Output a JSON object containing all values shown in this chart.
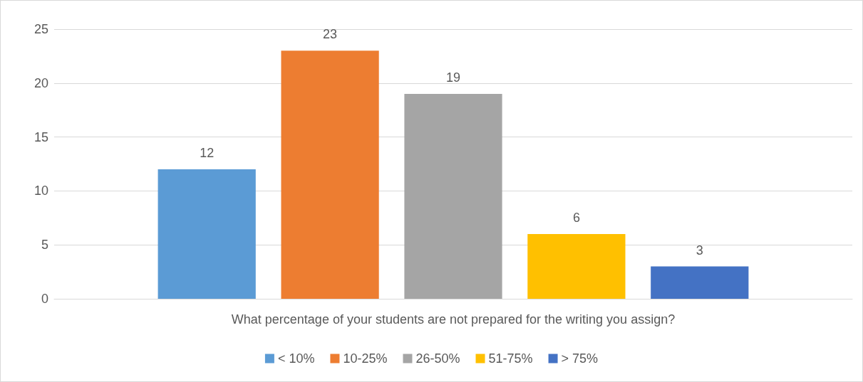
{
  "chart_data": {
    "type": "bar",
    "categories": [
      "What percentage of your students are not prepared for the writing you assign?"
    ],
    "series": [
      {
        "name": "< 10%",
        "color": "#5b9bd5",
        "values": [
          12
        ]
      },
      {
        "name": "10-25%",
        "color": "#ed7d31",
        "values": [
          23
        ]
      },
      {
        "name": "26-50%",
        "color": "#a5a5a5",
        "values": [
          19
        ]
      },
      {
        "name": "51-75%",
        "color": "#ffc000",
        "values": [
          6
        ]
      },
      {
        "name": "> 75%",
        "color": "#4472c4",
        "values": [
          3
        ]
      }
    ],
    "ylim": [
      0,
      25
    ],
    "yticks": [
      0,
      5,
      10,
      15,
      20,
      25
    ],
    "grid": "y",
    "legend": "bottom",
    "data_labels": true
  }
}
